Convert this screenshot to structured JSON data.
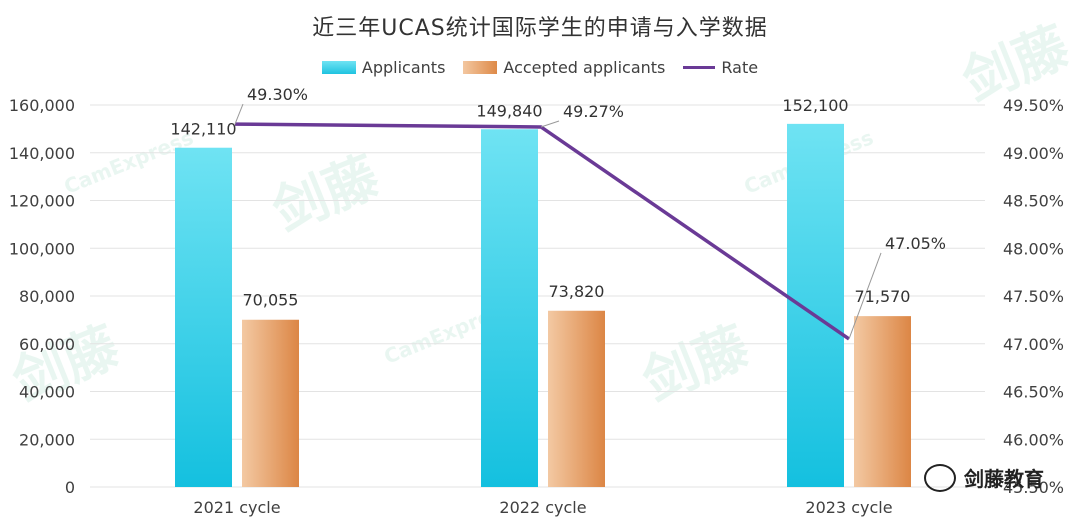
{
  "title": "近三年UCAS统计国际学生的申请与入学数据",
  "legend": [
    {
      "label": "Applicants",
      "color": "#2ec9e6"
    },
    {
      "label": "Accepted applicants",
      "color": "#e49a5d"
    },
    {
      "label": "Rate",
      "color": "#6a3a96"
    }
  ],
  "brand_text": "剑藤教育",
  "watermark_text": "剑藤",
  "watermark_sub": "CamExpress",
  "chart_data": {
    "type": "bar",
    "categories": [
      "2021 cycle",
      "2022 cycle",
      "2023 cycle"
    ],
    "series": [
      {
        "name": "Applicants",
        "values": [
          142110,
          149840,
          152100
        ],
        "labels": [
          "142,110",
          "149,840",
          "152,100"
        ]
      },
      {
        "name": "Accepted applicants",
        "values": [
          70055,
          73820,
          71570
        ],
        "labels": [
          "70,055",
          "73,820",
          "71,570"
        ]
      },
      {
        "name": "Rate",
        "type": "line",
        "axis": "right",
        "values": [
          49.3,
          49.27,
          47.05
        ],
        "labels": [
          "49.30%",
          "49.27%",
          "47.05%"
        ]
      }
    ],
    "y_left": {
      "min": 0,
      "max": 160000,
      "step": 20000,
      "tick_labels": [
        "0",
        "20,000",
        "40,000",
        "60,000",
        "80,000",
        "100,000",
        "120,000",
        "140,000",
        "160,000"
      ]
    },
    "y_right": {
      "min": 45.5,
      "max": 49.5,
      "step": 0.5,
      "tick_labels": [
        "45.50%",
        "46.00%",
        "46.50%",
        "47.00%",
        "47.50%",
        "48.00%",
        "48.50%",
        "49.00%",
        "49.50%"
      ]
    },
    "legend_position": "top",
    "grid": true
  }
}
